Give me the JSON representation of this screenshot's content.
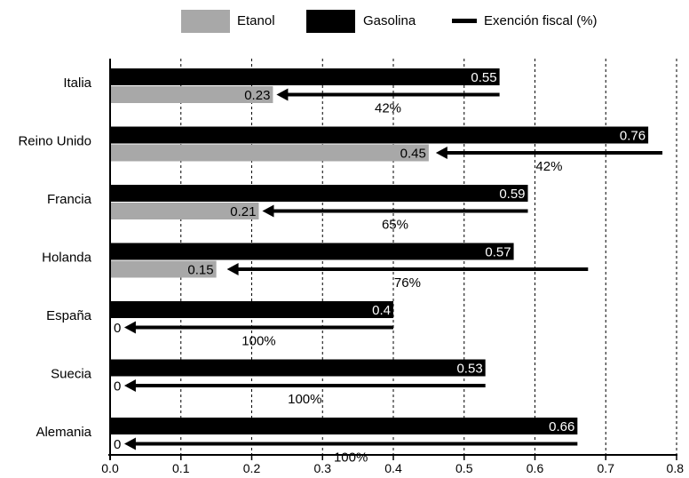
{
  "chart_data": {
    "type": "bar",
    "orientation": "horizontal",
    "title": "",
    "xlabel": "",
    "ylabel": "",
    "xlim": [
      0,
      0.8
    ],
    "x_ticks": [
      0.0,
      0.1,
      0.2,
      0.3,
      0.4,
      0.5,
      0.6,
      0.7,
      0.8
    ],
    "x_tick_labels": [
      "0.0",
      "0.1",
      "0.2",
      "0.3",
      "0.4",
      "0.5",
      "0.6",
      "0.7",
      "0.8"
    ],
    "grid": "vertical dashed",
    "legend_position": "top",
    "categories": [
      "Italia",
      "Reino Unido",
      "Francia",
      "Holanda",
      "España",
      "Suecia",
      "Alemania"
    ],
    "series": [
      {
        "name": "Etanol",
        "color": "#a8a8a8",
        "values": [
          0.23,
          0.45,
          0.21,
          0.15,
          0,
          0,
          0
        ],
        "value_labels": [
          "0.23",
          "0.45",
          "0.21",
          "0.15",
          "0",
          "0",
          "0"
        ]
      },
      {
        "name": "Gasolina",
        "color": "#000000",
        "values": [
          0.55,
          0.76,
          0.59,
          0.57,
          0.4,
          0.53,
          0.66
        ],
        "value_labels": [
          "0.55",
          "0.76",
          "0.59",
          "0.57",
          "0.4",
          "0.53",
          "0.66"
        ]
      },
      {
        "name": "Exención fiscal (%)",
        "color": "#000000",
        "values": [
          42,
          42,
          65,
          76,
          100,
          100,
          100
        ],
        "value_labels": [
          "42%",
          "42%",
          "65%",
          "76%",
          "100%",
          "100%",
          "100%"
        ],
        "arrow_from": [
          0.55,
          0.78,
          0.59,
          0.675,
          0.4,
          0.53,
          0.66
        ],
        "arrow_to": [
          0.235,
          0.46,
          0.215,
          0.165,
          0.02,
          0.02,
          0.02
        ]
      }
    ]
  }
}
